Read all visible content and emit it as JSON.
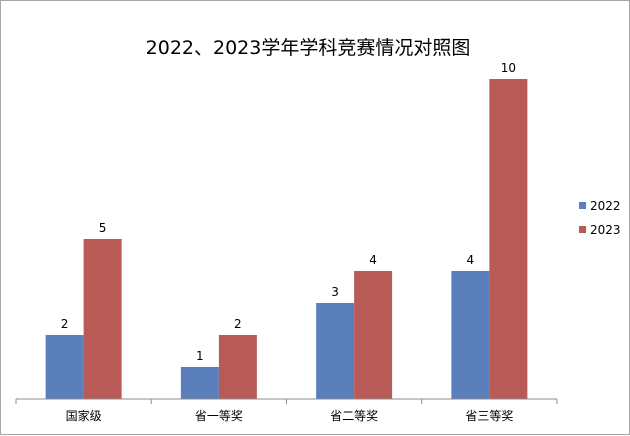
{
  "chart_data": {
    "type": "bar",
    "title": "2022、2023学年学科竞赛情况对照图",
    "xlabel": "",
    "ylabel": "",
    "categories": [
      "国家级",
      "省一等奖",
      "省二等奖",
      "省三等奖"
    ],
    "series": [
      {
        "name": "2022",
        "values": [
          2,
          1,
          3,
          4
        ],
        "color": "#5b7fbb"
      },
      {
        "name": "2023",
        "values": [
          5,
          2,
          4,
          10
        ],
        "color": "#b85a55"
      }
    ],
    "ylim": [
      0,
      10
    ],
    "grid": false,
    "y_axis_visible": false,
    "data_labels": true,
    "legend_position": "right"
  }
}
